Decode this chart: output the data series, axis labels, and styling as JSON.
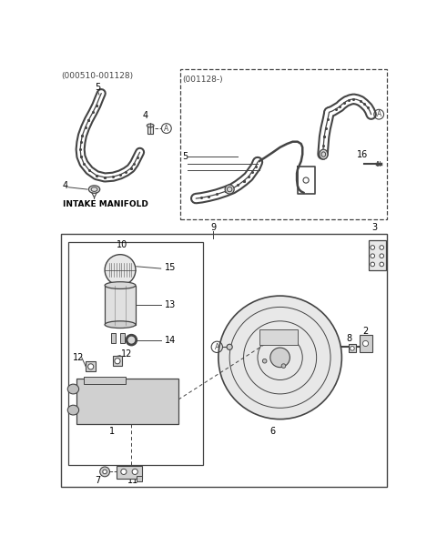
{
  "bg_color": "#ffffff",
  "lc": "#444444",
  "top_left_label": "(000510-001128)",
  "top_right_label": "(001128-)",
  "intake_manifold_label": "INTAKE MANIFOLD",
  "fig_w": 4.8,
  "fig_h": 6.11,
  "dpi": 100
}
